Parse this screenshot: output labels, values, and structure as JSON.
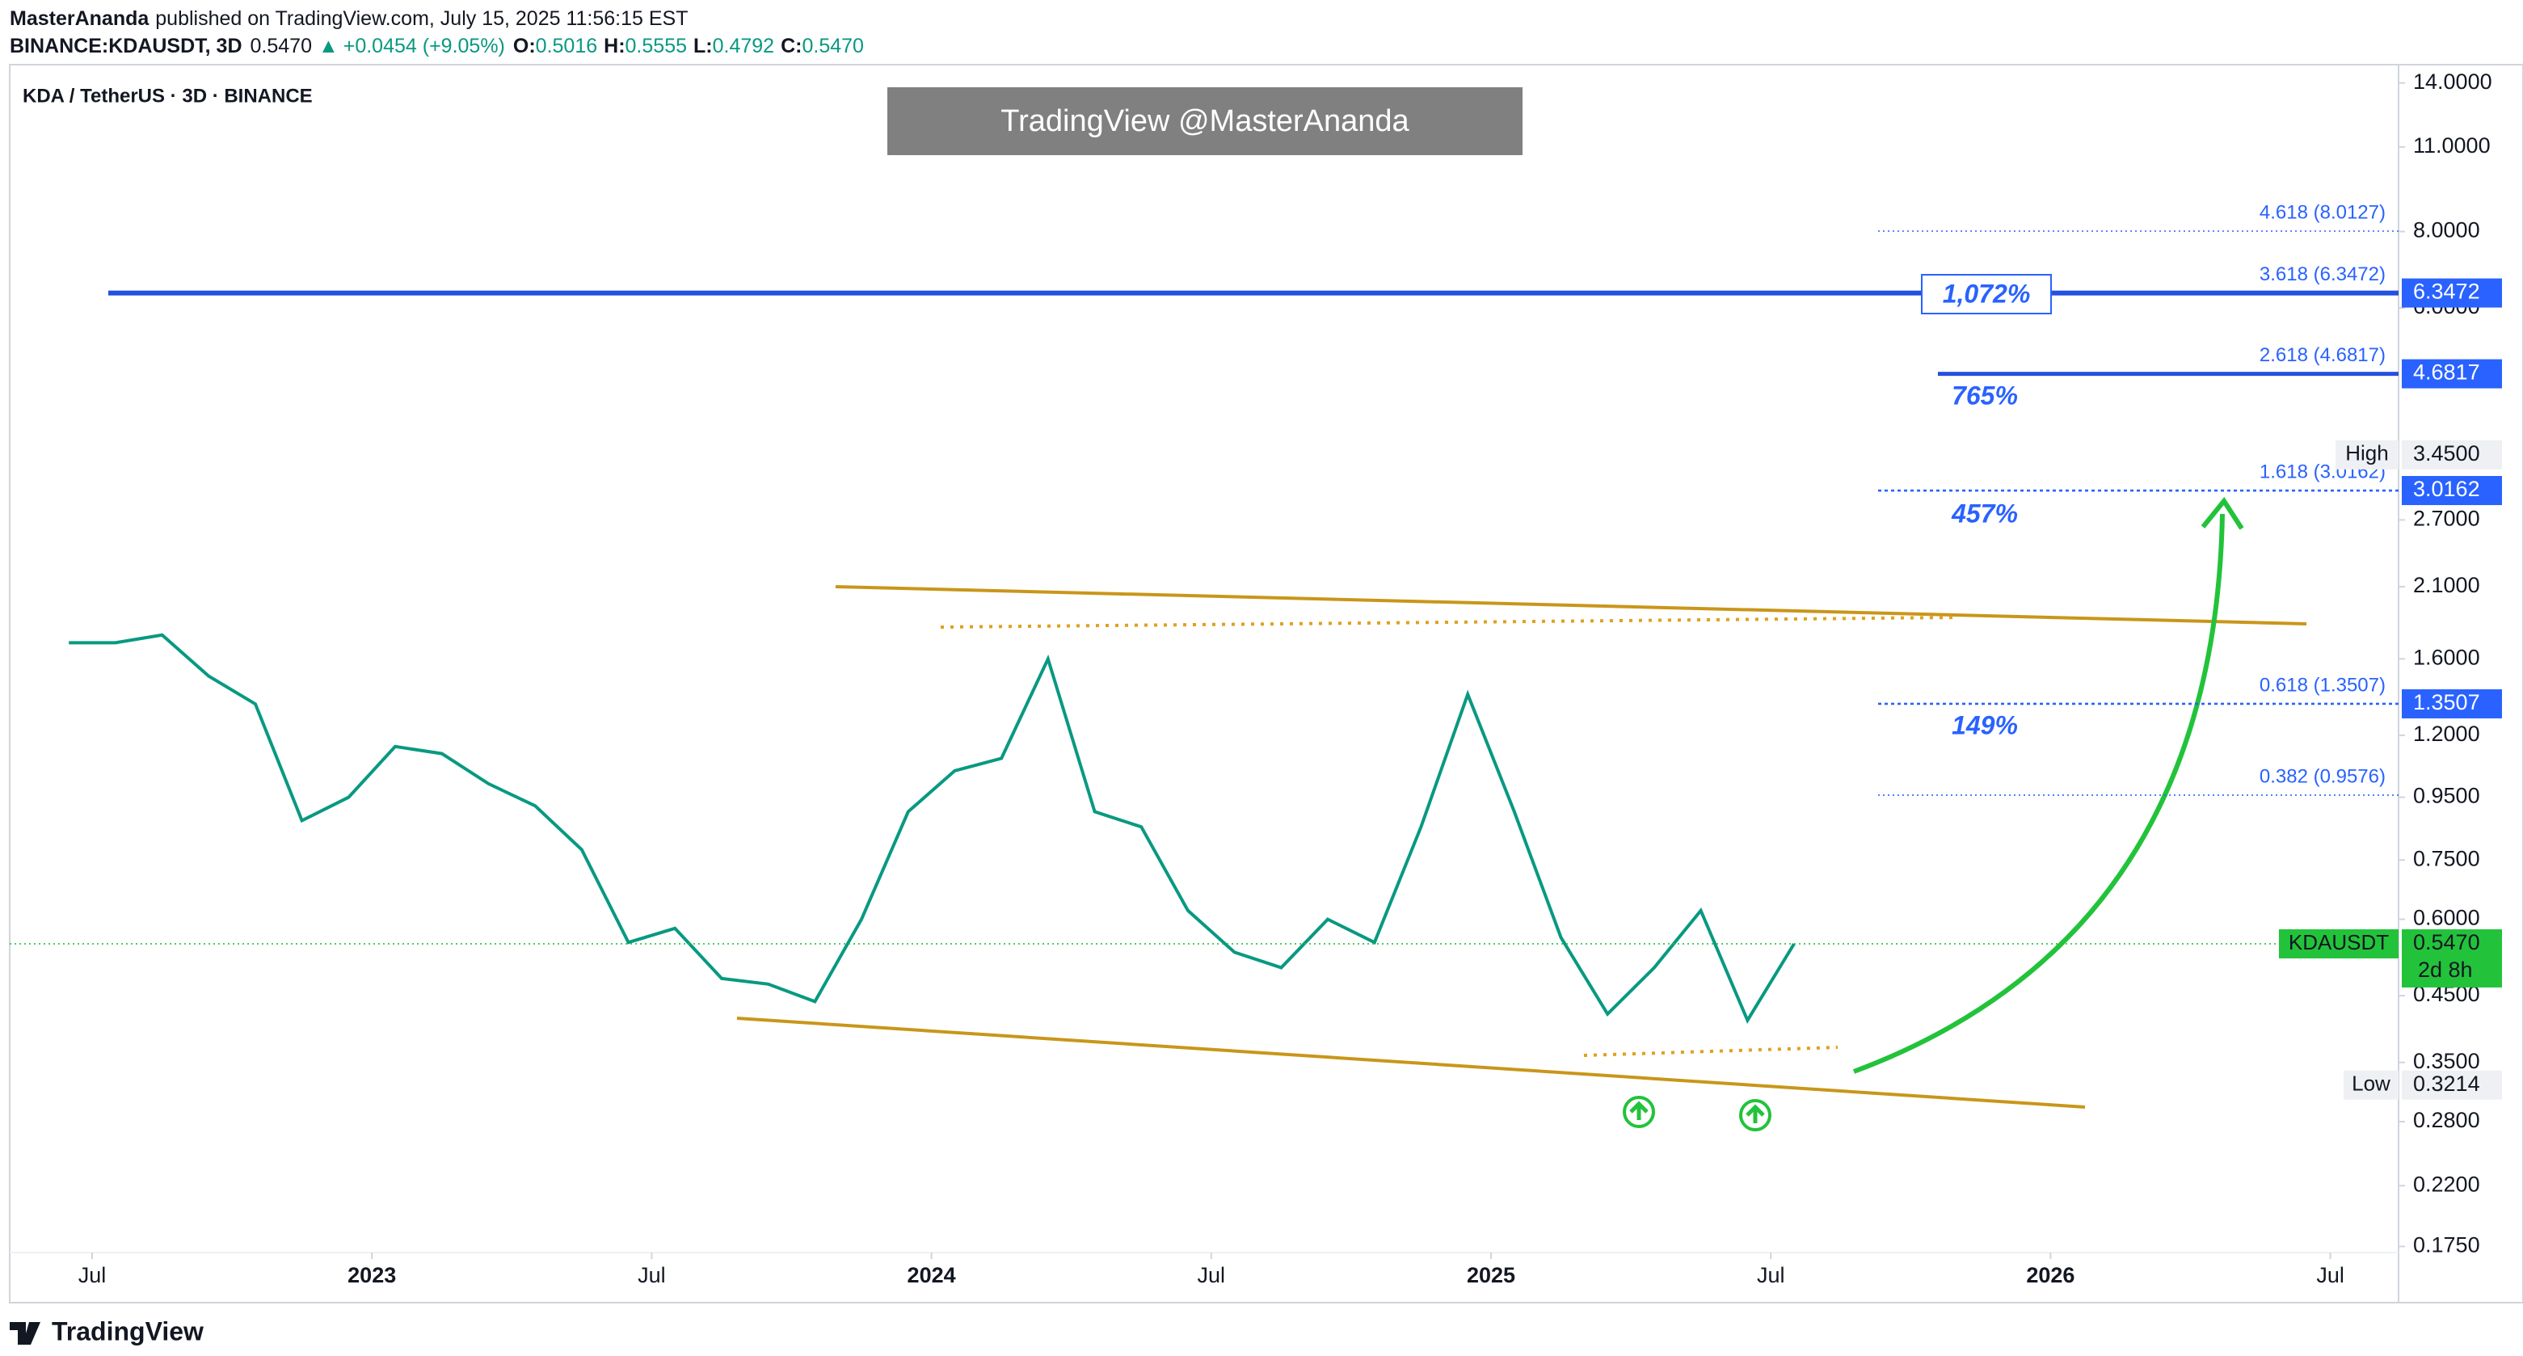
{
  "header": {
    "author": "MasterAnanda",
    "published": "published on TradingView.com, July 15, 2025 11:56:15 EST",
    "symbol": "BINANCE:KDAUSDT, 3D",
    "price": "0.5470",
    "arrow": "▲",
    "change": "+0.0454 (+9.05%)",
    "o_label": "O:",
    "o": "0.5016",
    "h_label": "H:",
    "h": "0.5555",
    "l_label": "L:",
    "l": "0.4792",
    "c_label": "C:",
    "c": "0.5470"
  },
  "watermark": "TradingView @MasterAnanda",
  "footer": "TradingView",
  "chart_data": {
    "type": "line",
    "log_scale": true,
    "x": [
      "2022-06",
      "2022-07",
      "2022-08",
      "2022-09",
      "2022-10",
      "2022-11",
      "2022-12",
      "2023-01",
      "2023-02",
      "2023-03",
      "2023-04",
      "2023-05",
      "2023-06",
      "2023-07",
      "2023-08",
      "2023-09",
      "2023-10",
      "2023-11",
      "2023-12",
      "2024-01",
      "2024-02",
      "2024-03",
      "2024-04",
      "2024-05",
      "2024-06",
      "2024-07",
      "2024-08",
      "2024-09",
      "2024-10",
      "2024-11",
      "2024-12",
      "2025-01",
      "2025-02",
      "2025-03",
      "2025-04",
      "2025-05",
      "2025-06",
      "2025-07"
    ],
    "series": [
      {
        "name": "KDA / TetherUS · 3D · BINANCE",
        "color": "#089981",
        "values": [
          1.7,
          1.7,
          1.75,
          1.5,
          1.35,
          0.87,
          0.95,
          1.15,
          1.12,
          1.0,
          0.92,
          0.78,
          0.55,
          0.58,
          0.48,
          0.47,
          0.44,
          0.6,
          0.9,
          1.05,
          1.1,
          1.6,
          0.9,
          0.85,
          0.62,
          0.53,
          0.5,
          0.6,
          0.55,
          0.85,
          1.4,
          0.9,
          0.56,
          0.42,
          0.5,
          0.62,
          0.41,
          0.547
        ]
      }
    ],
    "xticks": [
      {
        "value": "2022-07",
        "label": "Jul"
      },
      {
        "value": "2023-01",
        "label": "2023"
      },
      {
        "value": "2023-07",
        "label": "Jul"
      },
      {
        "value": "2024-01",
        "label": "2024"
      },
      {
        "value": "2024-07",
        "label": "Jul"
      },
      {
        "value": "2025-01",
        "label": "2025"
      },
      {
        "value": "2025-07",
        "label": "Jul"
      },
      {
        "value": "2026-01",
        "label": "2026"
      },
      {
        "value": "2026-07",
        "label": "Jul"
      }
    ],
    "ylim": [
      0.171,
      15.0
    ],
    "yticks": [
      {
        "value": 14,
        "label": "14.0000"
      },
      {
        "value": 11,
        "label": "11.0000"
      },
      {
        "value": 8,
        "label": "8.0000"
      },
      {
        "value": 6,
        "label": "6.0000"
      },
      {
        "value": 2.7,
        "label": "2.7000"
      },
      {
        "value": 2.1,
        "label": "2.1000"
      },
      {
        "value": 1.6,
        "label": "1.6000"
      },
      {
        "value": 1.2,
        "label": "1.2000"
      },
      {
        "value": 0.95,
        "label": "0.9500"
      },
      {
        "value": 0.75,
        "label": "0.7500"
      },
      {
        "value": 0.6,
        "label": "0.6000"
      },
      {
        "value": 0.45,
        "label": "0.4500"
      },
      {
        "value": 0.35,
        "label": "0.3500"
      },
      {
        "value": 0.28,
        "label": "0.2800"
      },
      {
        "value": 0.22,
        "label": "0.2200"
      },
      {
        "value": 0.175,
        "label": "0.1750"
      }
    ],
    "fib_levels": [
      {
        "label": "4.618 (8.0127)",
        "value": 8.0127
      },
      {
        "label": "3.618 (6.3472)",
        "value": 6.3472,
        "axis_tag": true
      },
      {
        "label": "2.618 (4.6817)",
        "value": 4.6817,
        "axis_tag": true
      },
      {
        "label": "1.618 (3.0162)",
        "value": 3.0162,
        "axis_tag": true
      },
      {
        "label": "0.618 (1.3507)",
        "value": 1.3507,
        "axis_tag": true
      },
      {
        "label": "0.382 (0.9576)",
        "value": 0.9576
      }
    ],
    "percent_labels": [
      "1,072%",
      "765%",
      "457%",
      "149%"
    ],
    "high": {
      "label": "High",
      "value": 3.45,
      "value_label": "3.4500"
    },
    "low": {
      "label": "Low",
      "value": 0.3214
    },
    "last": {
      "symbol": "KDAUSDT",
      "value": 0.547,
      "value_label": "0.5470",
      "countdown": "2d 8h"
    }
  }
}
